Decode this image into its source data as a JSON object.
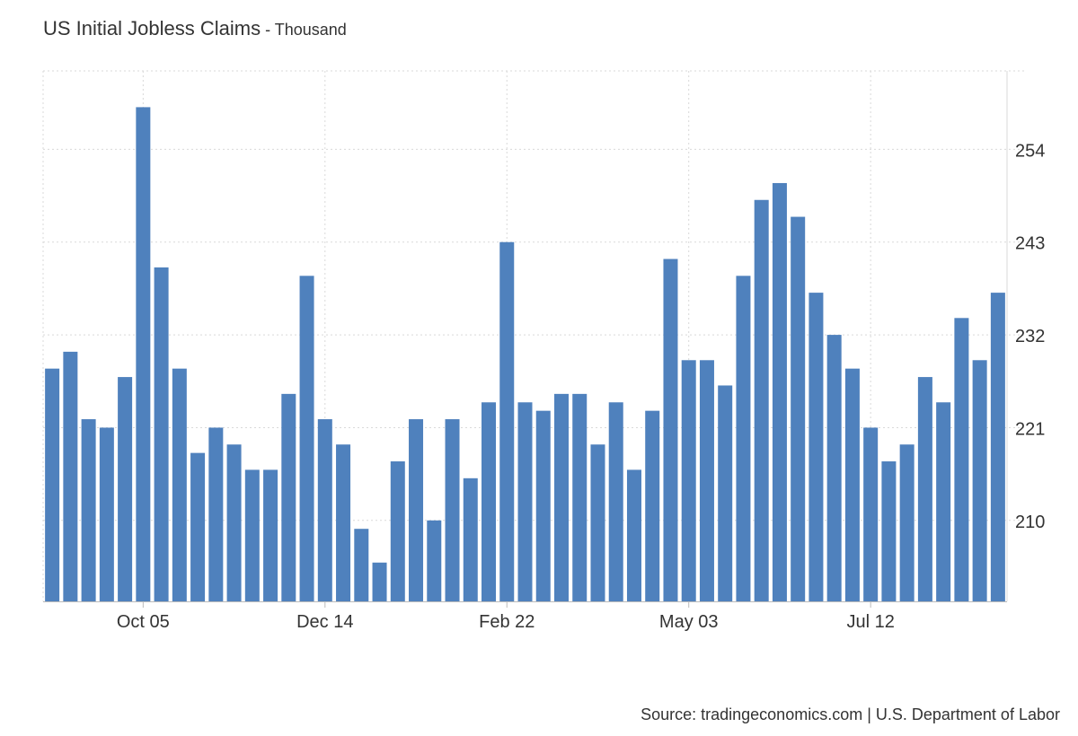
{
  "header": {
    "title": "US Initial Jobless Claims",
    "separator": " - ",
    "unit": "Thousand"
  },
  "source": "Source: tradingeconomics.com | U.S. Department of Labor",
  "colors": {
    "bar": "#4f81bd",
    "grid": "#d9d9d9",
    "text": "#333333"
  },
  "chart_data": {
    "type": "bar",
    "title": "US Initial Jobless Claims - Thousand",
    "xlabel": "",
    "ylabel": "Thousand",
    "ylim": [
      200.4,
      263.3
    ],
    "yticks": [
      210,
      221,
      232,
      243,
      254
    ],
    "xtick_labels": [
      {
        "label": "Oct 05",
        "index": 5
      },
      {
        "label": "Dec 14",
        "index": 15
      },
      {
        "label": "Feb 22",
        "index": 25
      },
      {
        "label": "May 03",
        "index": 35
      },
      {
        "label": "Jul 12",
        "index": 45
      }
    ],
    "grid": true,
    "values": [
      228,
      230,
      222,
      221,
      227,
      259,
      240,
      228,
      218,
      221,
      219,
      216,
      216,
      225,
      239,
      222,
      219,
      209,
      205,
      217,
      222,
      210,
      222,
      215,
      224,
      243,
      224,
      223,
      225,
      225,
      219,
      224,
      216,
      223,
      241,
      229,
      229,
      226,
      239,
      248,
      250,
      246,
      237,
      232,
      228,
      221,
      217,
      219,
      227,
      224,
      234,
      229,
      237
    ]
  }
}
